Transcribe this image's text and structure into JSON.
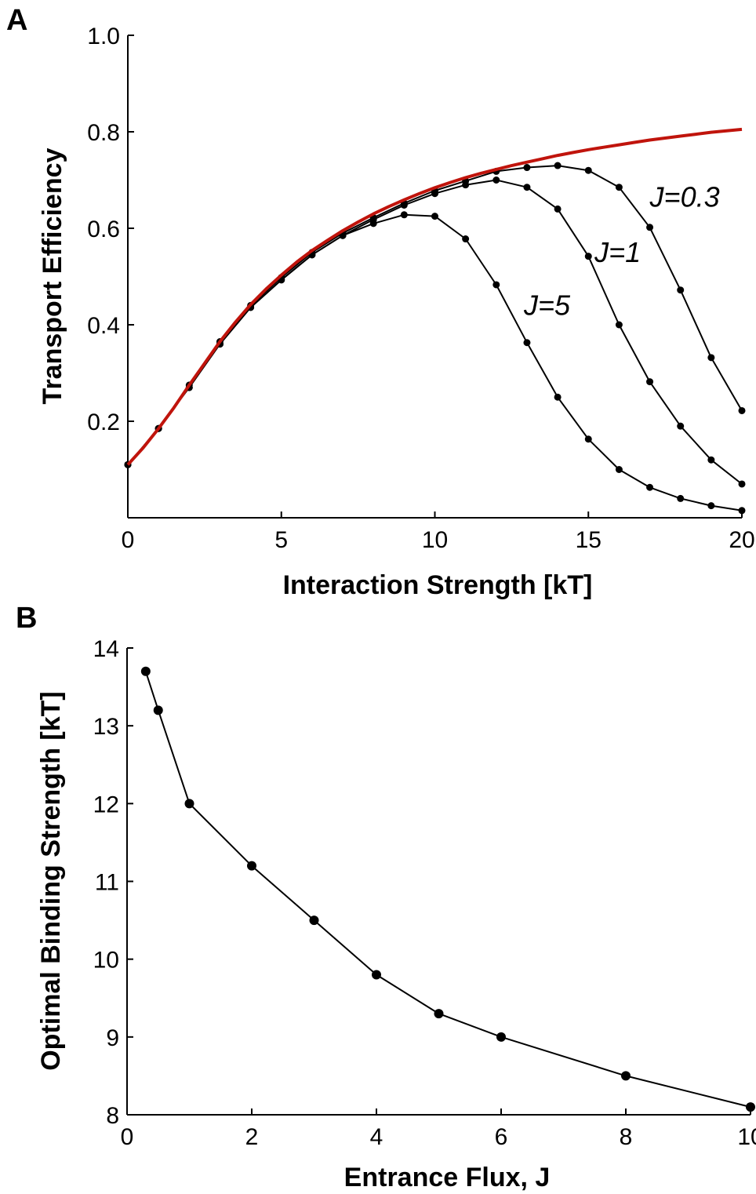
{
  "figure": {
    "panels": [
      "A",
      "B"
    ]
  },
  "chart_data": [
    {
      "panel": "A",
      "type": "line",
      "xlabel": "Interaction Strength [kT]",
      "ylabel": "Transport Efficiency",
      "xlim": [
        0,
        20
      ],
      "ylim": [
        0,
        1.0
      ],
      "xticks": [
        0,
        5,
        10,
        15,
        20
      ],
      "yticks": [
        0.2,
        0.4,
        0.6,
        0.8,
        1.0
      ],
      "ytick_labels": [
        "0.2",
        "0.4",
        "0.6",
        "0.8",
        "1.0"
      ],
      "grid": false,
      "series": [
        {
          "name": "J=0.3",
          "label_at": [
            17,
            0.645
          ],
          "color": "#000000",
          "markers": true,
          "x": [
            0,
            1,
            2,
            3,
            4,
            5,
            6,
            7,
            8,
            9,
            10,
            11,
            12,
            13,
            14,
            15,
            16,
            17,
            18,
            19,
            20
          ],
          "values": [
            0.11,
            0.185,
            0.275,
            0.365,
            0.44,
            0.498,
            0.55,
            0.59,
            0.622,
            0.652,
            0.678,
            0.698,
            0.718,
            0.726,
            0.73,
            0.72,
            0.685,
            0.602,
            0.472,
            0.332,
            0.222
          ]
        },
        {
          "name": "J=1",
          "label_at": [
            15.2,
            0.53
          ],
          "color": "#000000",
          "markers": true,
          "x": [
            0,
            1,
            2,
            3,
            4,
            5,
            6,
            7,
            8,
            9,
            10,
            11,
            12,
            13,
            14,
            15,
            16,
            17,
            18,
            19,
            20
          ],
          "values": [
            0.11,
            0.185,
            0.27,
            0.36,
            0.436,
            0.493,
            0.545,
            0.585,
            0.618,
            0.648,
            0.672,
            0.69,
            0.7,
            0.685,
            0.64,
            0.542,
            0.4,
            0.282,
            0.19,
            0.12,
            0.07
          ]
        },
        {
          "name": "J=5",
          "label_at": [
            12.9,
            0.42
          ],
          "color": "#000000",
          "markers": true,
          "x": [
            0,
            1,
            2,
            3,
            4,
            5,
            6,
            7,
            8,
            9,
            10,
            11,
            12,
            13,
            14,
            15,
            16,
            17,
            18,
            19,
            20
          ],
          "values": [
            0.11,
            0.185,
            0.27,
            0.36,
            0.436,
            0.493,
            0.545,
            0.585,
            0.61,
            0.628,
            0.625,
            0.578,
            0.483,
            0.363,
            0.25,
            0.163,
            0.1,
            0.063,
            0.04,
            0.025,
            0.015
          ]
        },
        {
          "name": "",
          "color": "#c0140c",
          "markers": false,
          "x": [
            0,
            0.5,
            1,
            1.5,
            2,
            2.5,
            3,
            3.5,
            4,
            4.5,
            5,
            5.5,
            6,
            6.5,
            7,
            7.5,
            8,
            8.5,
            9,
            9.5,
            10,
            10.5,
            11,
            11.5,
            12,
            12.5,
            13,
            13.5,
            14,
            14.5,
            15,
            15.5,
            16,
            16.5,
            17,
            17.5,
            18,
            18.5,
            19,
            19.5,
            20
          ],
          "values": [
            0.11,
            0.145,
            0.185,
            0.228,
            0.275,
            0.32,
            0.365,
            0.405,
            0.442,
            0.474,
            0.503,
            0.53,
            0.554,
            0.575,
            0.595,
            0.613,
            0.63,
            0.645,
            0.659,
            0.672,
            0.684,
            0.695,
            0.705,
            0.714,
            0.722,
            0.73,
            0.737,
            0.744,
            0.751,
            0.757,
            0.763,
            0.768,
            0.773,
            0.778,
            0.783,
            0.787,
            0.791,
            0.795,
            0.799,
            0.802,
            0.805
          ]
        }
      ]
    },
    {
      "panel": "B",
      "type": "line",
      "xlabel": "Entrance Flux, J",
      "ylabel": "Optimal Binding Strength [kT]",
      "xlim": [
        0,
        10
      ],
      "ylim": [
        8,
        14
      ],
      "xticks": [
        0,
        2,
        4,
        6,
        8,
        10
      ],
      "yticks": [
        8,
        9,
        10,
        11,
        12,
        13,
        14
      ],
      "grid": false,
      "series": [
        {
          "name": "",
          "color": "#000000",
          "markers": true,
          "x": [
            0.3,
            0.5,
            1,
            2,
            3,
            4,
            5,
            6,
            8,
            10
          ],
          "values": [
            13.7,
            13.2,
            12.0,
            11.2,
            10.5,
            9.8,
            9.3,
            9.0,
            8.5,
            8.1
          ]
        }
      ]
    }
  ]
}
